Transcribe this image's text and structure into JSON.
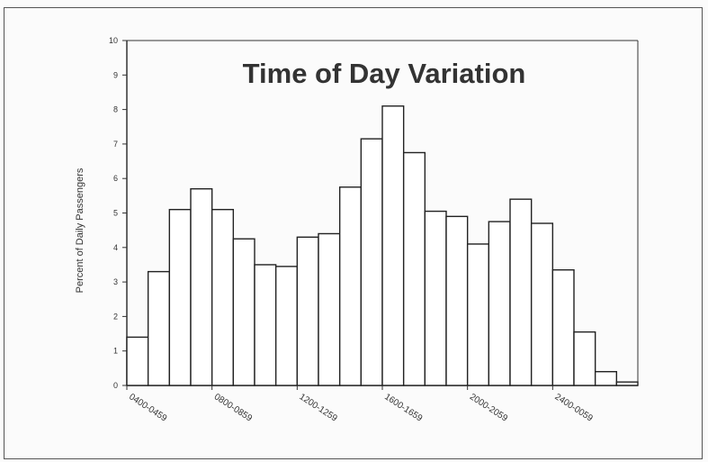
{
  "chart_data": {
    "type": "bar",
    "title": "Time of Day Variation",
    "ylabel": "Percent of Daily Passengers",
    "xlabel": "",
    "ylim": [
      0,
      10
    ],
    "yticks": [
      "0",
      "1",
      "2",
      "3",
      "4",
      "5",
      "6",
      "7",
      "8",
      "9",
      "10"
    ],
    "xtick_labels": [
      "0400-0459",
      "0800-0859",
      "1200-1259",
      "1600-1659",
      "2000-2059",
      "2400-0059"
    ],
    "values": [
      1.4,
      3.3,
      5.1,
      5.7,
      5.1,
      4.25,
      3.5,
      3.45,
      4.3,
      4.4,
      5.75,
      7.15,
      8.1,
      6.75,
      5.05,
      4.9,
      4.1,
      4.75,
      5.4,
      4.7,
      3.35,
      1.55,
      0.4,
      0.1
    ],
    "grid": false,
    "legend": "none",
    "bar_fill": "#ffffff",
    "bar_stroke": "#222222"
  }
}
